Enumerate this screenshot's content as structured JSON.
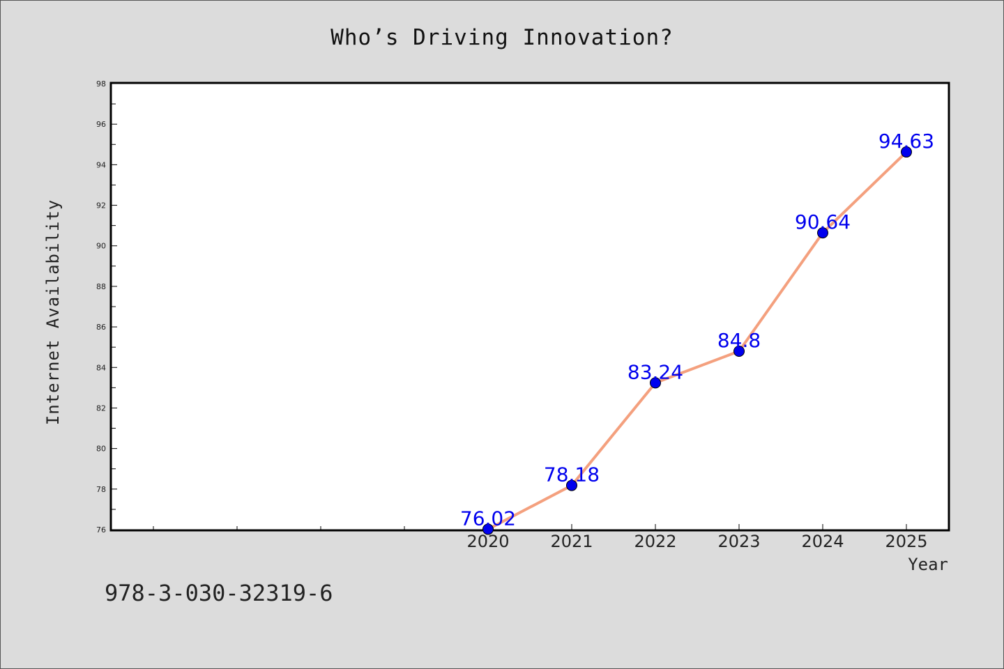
{
  "title": "Who’s Driving Innovation?",
  "isbn": "978-3-030-32319-6",
  "colors": {
    "background": "#dcdcdc",
    "plot_bg": "#ffffff",
    "line": "#f4a07e",
    "marker": "#0000ee",
    "data_label": "#0000ee"
  },
  "chart_data": {
    "type": "line",
    "title": "Who’s Driving Innovation?",
    "xlabel": "Year",
    "ylabel": "Internet Availability",
    "x": [
      "2020",
      "2021",
      "2022",
      "2023",
      "2024",
      "2025"
    ],
    "values": [
      76.02,
      78.18,
      83.24,
      84.8,
      90.64,
      94.63
    ],
    "data_labels": [
      "76.02",
      "78.18",
      "83.24",
      "84.8",
      "90.64",
      "94.63"
    ],
    "xlim": [
      2015.5,
      2025.5
    ],
    "ylim": [
      76,
      98
    ],
    "y_ticks": [
      "76",
      "78",
      "80",
      "82",
      "84",
      "86",
      "88",
      "90",
      "92",
      "94",
      "96",
      "98"
    ],
    "x_minor_ticks": [
      2016,
      2017,
      2018,
      2019
    ],
    "grid": false,
    "legend": "none"
  }
}
